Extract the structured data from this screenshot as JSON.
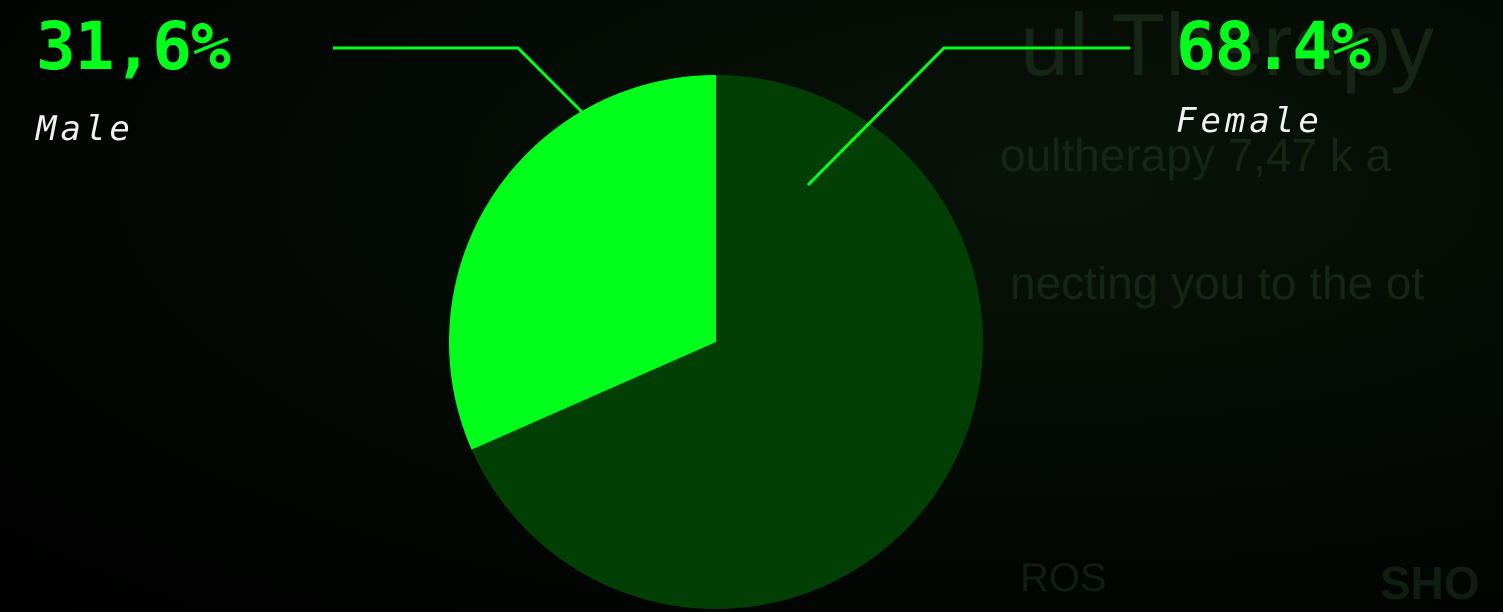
{
  "background_text": {
    "line1": "ul Therapy",
    "line2": "oultherapy 7,47 k a",
    "line3": "necting you to the ot",
    "line4": "ROS",
    "line5": "SHO"
  },
  "colors": {
    "female": "#023f05",
    "male": "#00ff1a",
    "label_accent": "#00ff1a",
    "label_text": "#f2f2f2"
  },
  "chart_data": {
    "type": "pie",
    "title": "",
    "slices": [
      {
        "label": "Female",
        "value": 68.4,
        "display": "68.4%",
        "color": "#023f05"
      },
      {
        "label": "Male",
        "value": 31.6,
        "display": "31,6%",
        "color": "#00ff1a"
      }
    ],
    "start_angle_deg": 0,
    "direction": "clockwise"
  }
}
